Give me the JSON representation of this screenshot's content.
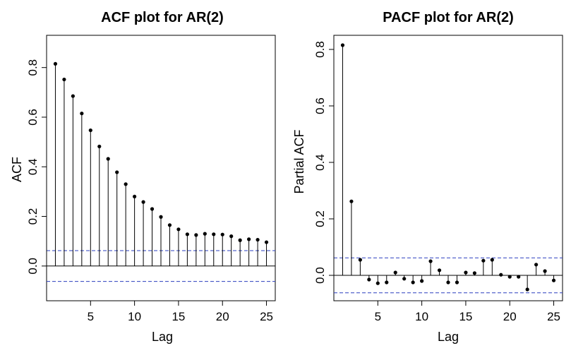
{
  "chart_data": [
    {
      "type": "scatter",
      "title": "ACF plot for AR(2)",
      "xlabel": "Lag",
      "ylabel": "ACF",
      "x": [
        1,
        2,
        3,
        4,
        5,
        6,
        7,
        8,
        9,
        10,
        11,
        12,
        13,
        14,
        15,
        16,
        17,
        18,
        19,
        20,
        21,
        22,
        23,
        24,
        25
      ],
      "values": [
        0.815,
        0.752,
        0.685,
        0.615,
        0.547,
        0.482,
        0.432,
        0.378,
        0.33,
        0.28,
        0.258,
        0.23,
        0.198,
        0.165,
        0.148,
        0.128,
        0.125,
        0.13,
        0.128,
        0.127,
        0.12,
        0.104,
        0.108,
        0.106,
        0.096
      ],
      "confidence_bound": 0.062,
      "xlim": [
        0,
        26
      ],
      "ylim": [
        -0.14,
        0.93
      ],
      "xticks": [
        5,
        10,
        15,
        20,
        25
      ],
      "yticks": [
        0.0,
        0.2,
        0.4,
        0.6,
        0.8
      ],
      "xtick_labels": [
        "5",
        "10",
        "15",
        "20",
        "25"
      ],
      "ytick_labels": [
        "0.0",
        "0.2",
        "0.4",
        "0.6",
        "0.8"
      ],
      "grid": false,
      "colors": {
        "stem": "#000000",
        "confidence": "#2b3fbf"
      }
    },
    {
      "type": "scatter",
      "title": "PACF plot for AR(2)",
      "xlabel": "Lag",
      "ylabel": "Partial ACF",
      "x": [
        1,
        2,
        3,
        4,
        5,
        6,
        7,
        8,
        9,
        10,
        11,
        12,
        13,
        14,
        15,
        16,
        17,
        18,
        19,
        20,
        21,
        22,
        23,
        24,
        25
      ],
      "values": [
        0.815,
        0.262,
        0.055,
        -0.015,
        -0.028,
        -0.025,
        0.01,
        -0.012,
        -0.025,
        -0.02,
        0.05,
        0.018,
        -0.025,
        -0.025,
        0.01,
        0.008,
        0.052,
        0.055,
        0.002,
        -0.005,
        -0.005,
        -0.05,
        0.038,
        0.015,
        -0.018
      ],
      "confidence_bound": 0.062,
      "xlim": [
        0,
        26
      ],
      "ylim": [
        -0.09,
        0.85
      ],
      "xticks": [
        5,
        10,
        15,
        20,
        25
      ],
      "yticks": [
        0.0,
        0.2,
        0.4,
        0.6,
        0.8
      ],
      "xtick_labels": [
        "5",
        "10",
        "15",
        "20",
        "25"
      ],
      "ytick_labels": [
        "0.0",
        "0.2",
        "0.4",
        "0.6",
        "0.8"
      ],
      "grid": false,
      "colors": {
        "stem": "#000000",
        "confidence": "#2b3fbf"
      }
    }
  ]
}
